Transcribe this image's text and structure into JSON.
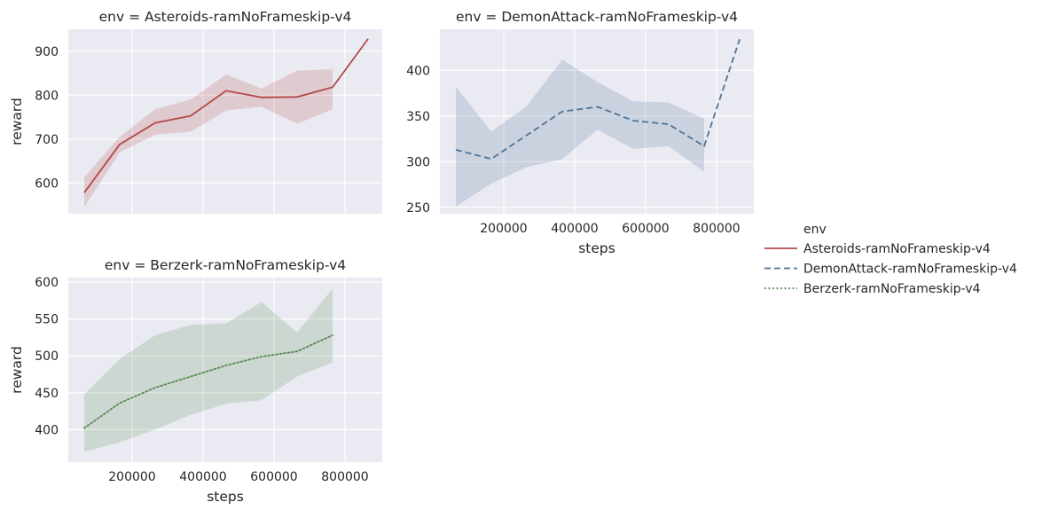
{
  "chart_data": {
    "type": "line",
    "legend": {
      "title": "env",
      "placement": "right",
      "entries": [
        {
          "label": "Asteroids-ramNoFrameskip-v4",
          "color": "#b44a4a",
          "dash": "solid"
        },
        {
          "label": "DemonAttack-ramNoFrameskip-v4",
          "color": "#4e7396",
          "dash": "dashed"
        },
        {
          "label": "Berzerk-ramNoFrameskip-v4",
          "color": "#5a8a55",
          "dash": "dotted"
        }
      ]
    },
    "colors": {
      "background": "#eaeaf2",
      "grid": "#ffffff"
    },
    "grid": true,
    "panels": [
      {
        "title": "env = Asteroids-ramNoFrameskip-v4",
        "xlabel": "",
        "ylabel": "reward",
        "xlim": [
          20000,
          905000
        ],
        "ylim": [
          530,
          950
        ],
        "xticks": [
          200000,
          400000,
          600000,
          800000
        ],
        "xticklabels": [],
        "yticks": [
          600,
          700,
          800,
          900
        ],
        "yticklabels": [
          "600",
          "700",
          "800",
          "900"
        ],
        "color": "#b44a4a",
        "dash": "solid",
        "x": [
          65000,
          165000,
          265000,
          365000,
          465000,
          565000,
          665000,
          765000,
          865000
        ],
        "y": [
          578,
          688,
          737,
          753,
          810,
          795,
          796,
          818,
          928
        ],
        "lower": [
          545,
          670,
          710,
          717,
          765,
          774,
          735,
          768,
          null
        ],
        "upper": [
          613,
          705,
          768,
          790,
          847,
          815,
          856,
          859,
          null
        ]
      },
      {
        "title": "env = DemonAttack-ramNoFrameskip-v4",
        "xlabel": "steps",
        "ylabel": "",
        "xlim": [
          20000,
          905000
        ],
        "ylim": [
          243,
          445
        ],
        "xticks": [
          200000,
          400000,
          600000,
          800000
        ],
        "xticklabels": [
          "200000",
          "400000",
          "600000",
          "800000"
        ],
        "yticks": [
          250,
          300,
          350,
          400
        ],
        "yticklabels": [
          "250",
          "300",
          "350",
          "400"
        ],
        "color": "#4e7396",
        "dash": "dashed",
        "x": [
          65000,
          165000,
          265000,
          365000,
          465000,
          565000,
          665000,
          765000,
          865000
        ],
        "y": [
          313,
          303,
          329,
          355,
          360,
          345,
          341,
          317,
          434
        ],
        "lower": [
          251,
          276,
          294,
          303,
          335,
          314,
          317,
          289,
          null
        ],
        "upper": [
          382,
          333,
          361,
          412,
          387,
          366,
          365,
          347,
          null
        ]
      },
      {
        "title": "env = Berzerk-ramNoFrameskip-v4",
        "xlabel": "steps",
        "ylabel": "reward",
        "xlim": [
          20000,
          905000
        ],
        "ylim": [
          356,
          606
        ],
        "xticks": [
          200000,
          400000,
          600000,
          800000
        ],
        "xticklabels": [
          "200000",
          "400000",
          "600000",
          "800000"
        ],
        "yticks": [
          400,
          450,
          500,
          550,
          600
        ],
        "yticklabels": [
          "400",
          "450",
          "500",
          "550",
          "600"
        ],
        "color": "#5a8a55",
        "dash": "dotted",
        "x": [
          65000,
          165000,
          265000,
          365000,
          465000,
          565000,
          665000,
          765000
        ],
        "y": [
          402,
          436,
          457,
          472,
          487,
          499,
          506,
          528
        ],
        "lower": [
          370,
          383,
          400,
          420,
          435,
          440,
          472,
          491
        ],
        "upper": [
          448,
          496,
          528,
          542,
          544,
          573,
          532,
          591
        ]
      }
    ]
  }
}
